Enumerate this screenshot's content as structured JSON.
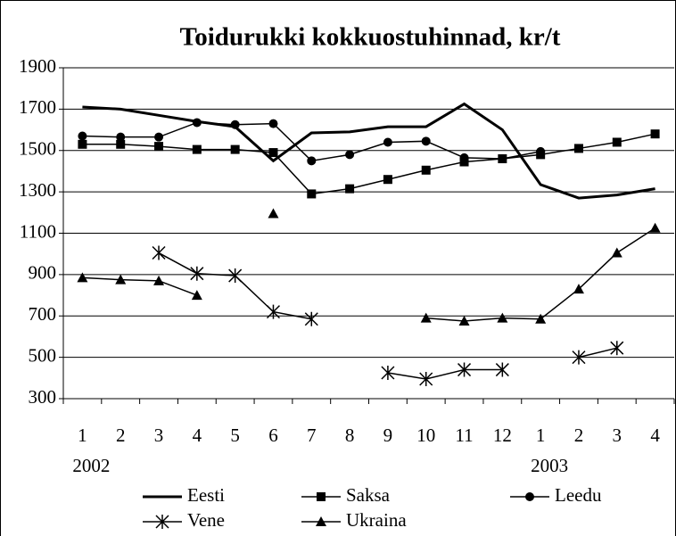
{
  "chart_data": {
    "type": "line",
    "title": "Toidurukki kokkuostuhinnad, kr/t",
    "categories": [
      "1",
      "2",
      "3",
      "4",
      "5",
      "6",
      "7",
      "8",
      "9",
      "10",
      "11",
      "12",
      "1",
      "2",
      "3",
      "4"
    ],
    "year_labels": [
      "2002",
      null,
      null,
      null,
      null,
      null,
      null,
      null,
      null,
      null,
      null,
      null,
      "2003",
      null,
      null,
      null
    ],
    "ylim": [
      300,
      1900
    ],
    "yticks": [
      300,
      500,
      700,
      900,
      1100,
      1300,
      1500,
      1700,
      1900
    ],
    "grid": true,
    "series": [
      {
        "name": "Eesti",
        "color": "#000000",
        "marker": "none",
        "line_width": 3,
        "values": [
          1710,
          1700,
          1670,
          1640,
          1615,
          1450,
          1585,
          1590,
          1615,
          1615,
          1725,
          1600,
          1335,
          1270,
          1285,
          1315
        ]
      },
      {
        "name": "Saksa",
        "color": "#000000",
        "marker": "square",
        "line_width": 1.5,
        "values": [
          1530,
          1530,
          1520,
          1505,
          1505,
          1490,
          1290,
          1315,
          1360,
          1405,
          1445,
          1460,
          1480,
          1510,
          1540,
          1580
        ]
      },
      {
        "name": "Leedu",
        "color": "#000000",
        "marker": "circle",
        "line_width": 1.5,
        "values": [
          1570,
          1565,
          1565,
          1635,
          1625,
          1630,
          1450,
          1480,
          1540,
          1545,
          1465,
          1460,
          1495,
          null,
          null,
          null
        ]
      },
      {
        "name": "Vene",
        "color": "#000000",
        "marker": "star",
        "line_width": 1.5,
        "values": [
          null,
          null,
          1005,
          905,
          895,
          720,
          685,
          null,
          425,
          395,
          440,
          440,
          null,
          500,
          545,
          null
        ]
      },
      {
        "name": "Ukraina",
        "color": "#000000",
        "marker": "triangle",
        "line_width": 1.5,
        "values": [
          885,
          875,
          870,
          800,
          null,
          1195,
          null,
          null,
          null,
          690,
          675,
          690,
          685,
          830,
          1005,
          1125
        ]
      }
    ]
  }
}
